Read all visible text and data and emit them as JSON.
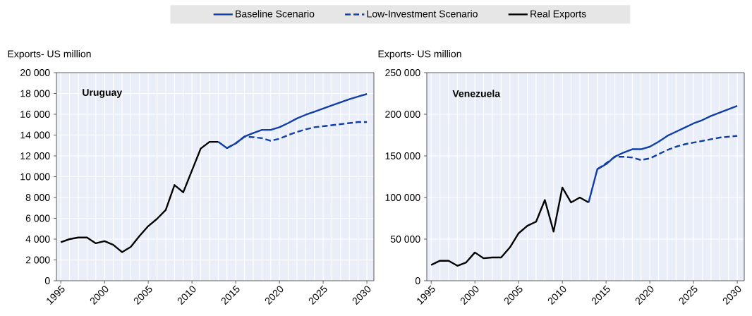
{
  "chart_data": [
    {
      "type": "line",
      "title": "Uruguay",
      "ylabel": "Exports- US million",
      "legend": "top",
      "grid": true,
      "xlim": [
        1994.5,
        2030.8
      ],
      "xticks": [
        1995,
        2000,
        2005,
        2010,
        2015,
        2020,
        2025,
        2030
      ],
      "ylim": [
        0,
        20000
      ],
      "yticks": [
        0,
        {
          "value": 2000,
          "label": "2 000"
        },
        {
          "value": 4000,
          "label": "4 000"
        },
        {
          "value": 6000,
          "label": "6 000"
        },
        {
          "value": 8000,
          "label": "8 000"
        },
        {
          "value": 10000,
          "label": "10 000"
        },
        {
          "value": 12000,
          "label": "12 000"
        },
        {
          "value": 14000,
          "label": "14 000"
        },
        {
          "value": 16000,
          "label": "16 000"
        },
        {
          "value": 18000,
          "label": "18 000"
        },
        {
          "value": 20000,
          "label": "20 000"
        }
      ],
      "series": [
        {
          "name": "Baseline Scenario",
          "color": "#0f3ea8",
          "line_style": "solid",
          "x": [
            2013,
            2014,
            2015,
            2016,
            2017,
            2018,
            2019,
            2020,
            2021,
            2022,
            2023,
            2024,
            2025,
            2026,
            2027,
            2028,
            2029,
            2030
          ],
          "values": [
            13350,
            12750,
            13200,
            13850,
            14200,
            14500,
            14500,
            14750,
            15150,
            15600,
            15950,
            16250,
            16550,
            16850,
            17150,
            17450,
            17700,
            17950
          ]
        },
        {
          "name": "Low-Investment Scenario",
          "color": "#0f3ea8",
          "line_style": "dashed",
          "x": [
            2014,
            2015,
            2016,
            2017,
            2018,
            2019,
            2020,
            2021,
            2022,
            2023,
            2024,
            2025,
            2026,
            2027,
            2028,
            2029,
            2030
          ],
          "values": [
            12750,
            13200,
            13850,
            13800,
            13700,
            13450,
            13650,
            14000,
            14300,
            14550,
            14750,
            14850,
            14950,
            15050,
            15150,
            15250,
            15250
          ]
        },
        {
          "name": "Real Exports",
          "color": "#000000",
          "line_style": "solid",
          "x": [
            1995,
            1996,
            1997,
            1998,
            1999,
            2000,
            2001,
            2002,
            2003,
            2004,
            2005,
            2006,
            2007,
            2008,
            2009,
            2010,
            2011,
            2012,
            2013
          ],
          "values": [
            3700,
            4000,
            4150,
            4150,
            3600,
            3800,
            3450,
            2750,
            3250,
            4300,
            5250,
            5950,
            6800,
            9200,
            8500,
            10600,
            12700,
            13350,
            13350
          ]
        }
      ]
    },
    {
      "type": "line",
      "title": "Venezuela",
      "ylabel": "Exports- US million",
      "grid": true,
      "xlim": [
        1994.5,
        2030.8
      ],
      "xticks": [
        1995,
        2000,
        2005,
        2010,
        2015,
        2020,
        2025,
        2030
      ],
      "ylim": [
        0,
        250000
      ],
      "yticks": [
        0,
        {
          "value": 50000,
          "label": "50 000"
        },
        {
          "value": 100000,
          "label": "100 000"
        },
        {
          "value": 150000,
          "label": "150 000"
        },
        {
          "value": 200000,
          "label": "200 000"
        },
        {
          "value": 250000,
          "label": "250 000"
        }
      ],
      "series": [
        {
          "color": "#0f3ea8",
          "line_style": "solid",
          "x": [
            2013,
            2014,
            2015,
            2016,
            2017,
            2018,
            2019,
            2020,
            2021,
            2022,
            2023,
            2024,
            2025,
            2026,
            2027,
            2028,
            2029,
            2030
          ],
          "values": [
            94000,
            134000,
            140000,
            149000,
            154000,
            158000,
            158000,
            161000,
            167000,
            174000,
            179000,
            184000,
            189000,
            193000,
            198000,
            202000,
            206000,
            210000
          ]
        },
        {
          "color": "#0f3ea8",
          "line_style": "dashed",
          "x": [
            2014,
            2015,
            2016,
            2017,
            2018,
            2019,
            2020,
            2021,
            2022,
            2023,
            2024,
            2025,
            2026,
            2027,
            2028,
            2029,
            2030
          ],
          "values": [
            134000,
            141000,
            149000,
            149000,
            148000,
            145000,
            147000,
            152000,
            157000,
            161000,
            164000,
            166000,
            168000,
            170000,
            172000,
            173000,
            174000
          ]
        },
        {
          "color": "#000000",
          "line_style": "solid",
          "x": [
            1995,
            1996,
            1997,
            1998,
            1999,
            2000,
            2001,
            2002,
            2003,
            2004,
            2005,
            2006,
            2007,
            2008,
            2009,
            2010,
            2011,
            2012,
            2013
          ],
          "values": [
            19000,
            24000,
            24000,
            18000,
            22000,
            34000,
            27000,
            28000,
            28000,
            40000,
            57000,
            66000,
            71000,
            97000,
            59000,
            112000,
            94000,
            100000,
            94000
          ]
        }
      ]
    }
  ]
}
